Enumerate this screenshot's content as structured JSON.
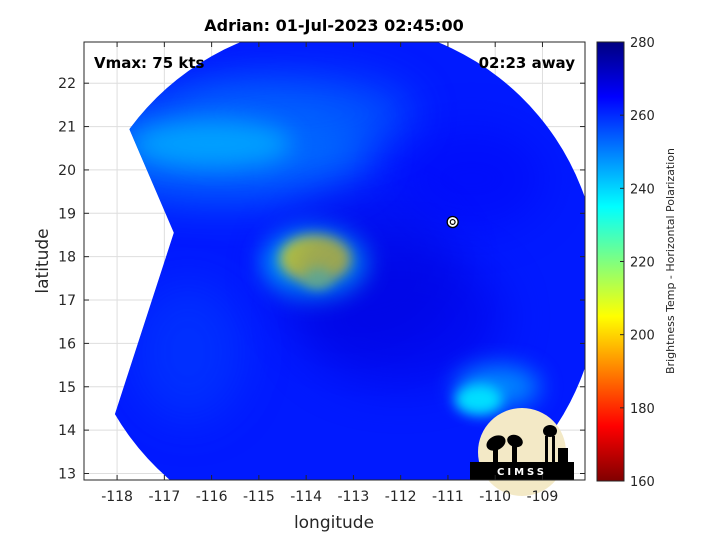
{
  "chart_data": {
    "type": "heatmap",
    "title": "Adrian: 01-Jul-2023 02:45:00",
    "xlabel": "longitude",
    "ylabel": "latitude",
    "xlim": [
      -118.7,
      -108.1
    ],
    "ylim": [
      12.85,
      22.95
    ],
    "x_ticks": [
      -118,
      -117,
      -116,
      -115,
      -114,
      -113,
      -112,
      -111,
      -110,
      -109
    ],
    "y_ticks": [
      13,
      14,
      15,
      16,
      17,
      18,
      19,
      20,
      21,
      22
    ],
    "x_tick_labels": [
      "-118",
      "-117",
      "-116",
      "-115",
      "-114",
      "-113",
      "-112",
      "-111",
      "-110",
      "-109"
    ],
    "y_tick_labels": [
      "13",
      "14",
      "15",
      "16",
      "17",
      "18",
      "19",
      "20",
      "21",
      "22"
    ],
    "grid": true,
    "annotations": {
      "vmax": "Vmax: 75 kts",
      "time_away": "02:23 away"
    },
    "colorbar": {
      "label": "Brightness Temp - Horizontal Polarization",
      "range": [
        160,
        280
      ],
      "ticks": [
        160,
        180,
        200,
        220,
        240,
        260,
        280
      ],
      "tick_labels": [
        "160",
        "180",
        "200",
        "220",
        "240",
        "260",
        "280"
      ],
      "colormap": "jet"
    },
    "swath": {
      "center_lon": -113.3,
      "center_lat": 17.4,
      "radius_deg": 5.5,
      "west_edge": [
        [
          -117.5,
          20.75
        ],
        [
          -116.8,
          18.55
        ],
        [
          -117.45,
          14.75
        ]
      ],
      "background_temp": 262
    },
    "features": [
      {
        "name": "warm core",
        "center_lon": -113.8,
        "center_lat": 17.95,
        "peak_temp": 207
      },
      {
        "name": "warm core secondary",
        "center_lon": -113.75,
        "center_lat": 17.5,
        "peak_temp": 218
      },
      {
        "name": "southeast warm patch",
        "center_lon": -110.35,
        "center_lat": 14.7,
        "peak_temp": 238
      },
      {
        "name": "northwest edge band",
        "center_lon": -116.0,
        "center_lat": 20.6,
        "peak_temp": 245
      },
      {
        "name": "cold eye ring",
        "center_lon": -112.8,
        "center_lat": 17.6,
        "peak_temp": 270
      }
    ],
    "storm_marker": {
      "lon": -110.9,
      "lat": 18.8
    },
    "logo_text": "CIMSS"
  }
}
